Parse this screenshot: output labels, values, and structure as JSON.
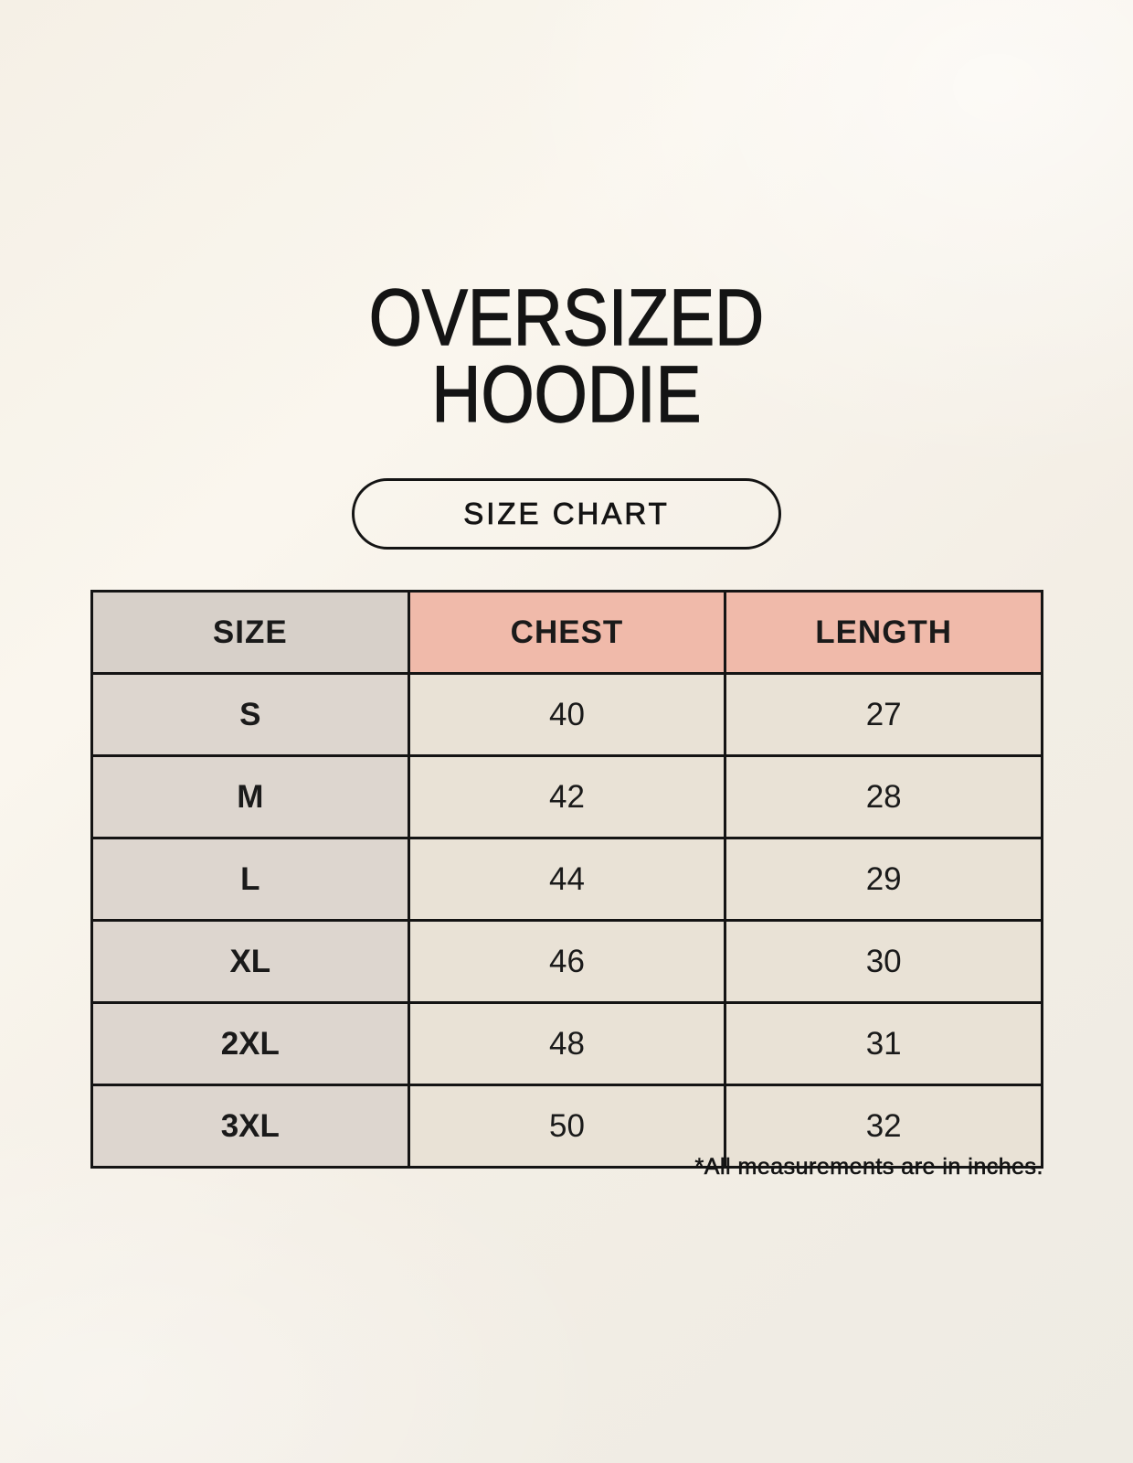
{
  "title": {
    "line1": "OVERSIZED",
    "line2": "HOODIE"
  },
  "size_chart_button": {
    "label": "SIZE CHART"
  },
  "table": {
    "headers": [
      "SIZE",
      "CHEST",
      "LENGTH"
    ],
    "rows": [
      {
        "size": "S",
        "chest": "40",
        "length": "27"
      },
      {
        "size": "M",
        "chest": "42",
        "length": "28"
      },
      {
        "size": "L",
        "chest": "44",
        "length": "29"
      },
      {
        "size": "XL",
        "chest": "46",
        "length": "30"
      },
      {
        "size": "2XL",
        "chest": "48",
        "length": "31"
      },
      {
        "size": "3XL",
        "chest": "50",
        "length": "32"
      }
    ]
  },
  "footnote": "*All measurements are in inches.",
  "colors": {
    "background": "#f6f1e8",
    "header_size_bg": "#d7d0c9",
    "header_accent_bg": "#f0baaa",
    "size_column_bg": "#ddd6cf",
    "data_cell_bg": "#e9e2d6",
    "border": "#141414",
    "text": "#1a1a1a"
  },
  "chart_data": {
    "type": "table",
    "title": "OVERSIZED HOODIE",
    "columns": [
      "SIZE",
      "CHEST",
      "LENGTH"
    ],
    "rows": [
      [
        "S",
        40,
        27
      ],
      [
        "M",
        42,
        28
      ],
      [
        "L",
        44,
        29
      ],
      [
        "XL",
        46,
        30
      ],
      [
        "2XL",
        48,
        31
      ],
      [
        "3XL",
        50,
        32
      ]
    ],
    "units": "inches"
  }
}
